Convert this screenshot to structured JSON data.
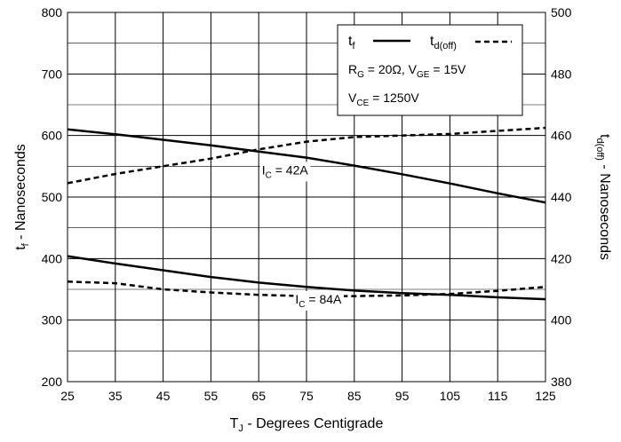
{
  "chart_data": {
    "type": "line",
    "title": "",
    "xlabel": {
      "main": "T",
      "sub": "J",
      "rest": " - Degrees Centigrade"
    },
    "ylabel_left": {
      "main": "t",
      "sub": "f",
      "rest": " - Nanoseconds"
    },
    "ylabel_right": {
      "main": "t",
      "sub": "d(off)",
      "rest": " - Nanoseconds"
    },
    "xlim": [
      25,
      125
    ],
    "ylim_left": [
      200,
      800
    ],
    "ylim_right": [
      380,
      500
    ],
    "x_ticks": [
      "25",
      "35",
      "45",
      "55",
      "65",
      "75",
      "85",
      "95",
      "105",
      "115",
      "125"
    ],
    "y_left_ticks": [
      "200",
      "300",
      "400",
      "500",
      "600",
      "700",
      "800"
    ],
    "y_right_ticks": [
      "380",
      "400",
      "420",
      "440",
      "460",
      "480",
      "500"
    ],
    "grid": true,
    "legend": {
      "placement": "top-right",
      "tf": {
        "main": "t",
        "sub": "f"
      },
      "td": {
        "main": "t",
        "sub": "d(off)"
      },
      "cond1": {
        "a": "R",
        "a_sub": "G",
        "a_val": " = 20Ω,  V",
        "b_sub": "GE",
        "b_val": " = 15V"
      },
      "cond2": {
        "a": "V",
        "a_sub": "CE",
        "a_val": " = 1250V"
      }
    },
    "annotations": [
      {
        "pre": "I",
        "sub": "C",
        "post": " = 42A",
        "x": 69,
        "y_left": 537
      },
      {
        "pre": "I",
        "sub": "C",
        "post": " = 84A",
        "x": 76,
        "y_left": 327
      }
    ],
    "series": [
      {
        "axis": "left",
        "style": "solid",
        "label": "tf, IC = 42A",
        "x": [
          25,
          35,
          45,
          55,
          65,
          75,
          85,
          95,
          105,
          115,
          125
        ],
        "y": [
          610,
          602,
          593,
          584,
          574,
          564,
          551,
          537,
          522,
          506,
          491
        ]
      },
      {
        "axis": "left",
        "style": "solid",
        "label": "tf, IC = 84A",
        "x": [
          25,
          35,
          45,
          55,
          65,
          75,
          85,
          95,
          105,
          115,
          125
        ],
        "y": [
          404,
          392,
          381,
          370,
          361,
          354,
          348,
          344,
          341,
          337,
          334
        ]
      },
      {
        "axis": "right",
        "style": "dashed",
        "label": "td(off), IC = 42A",
        "x": [
          25,
          35,
          45,
          55,
          65,
          75,
          85,
          95,
          105,
          115,
          125
        ],
        "y": [
          444.5,
          447.5,
          450,
          452.5,
          455.5,
          458,
          459.5,
          460,
          460.5,
          461.5,
          462.5
        ]
      },
      {
        "axis": "right",
        "style": "dashed",
        "label": "td(off), IC = 84A",
        "x": [
          25,
          35,
          45,
          55,
          65,
          75,
          85,
          95,
          105,
          115,
          125
        ],
        "y": [
          412.5,
          412,
          410,
          409,
          408.2,
          407.8,
          407.8,
          408,
          408.5,
          409.5,
          410.8
        ]
      }
    ]
  }
}
